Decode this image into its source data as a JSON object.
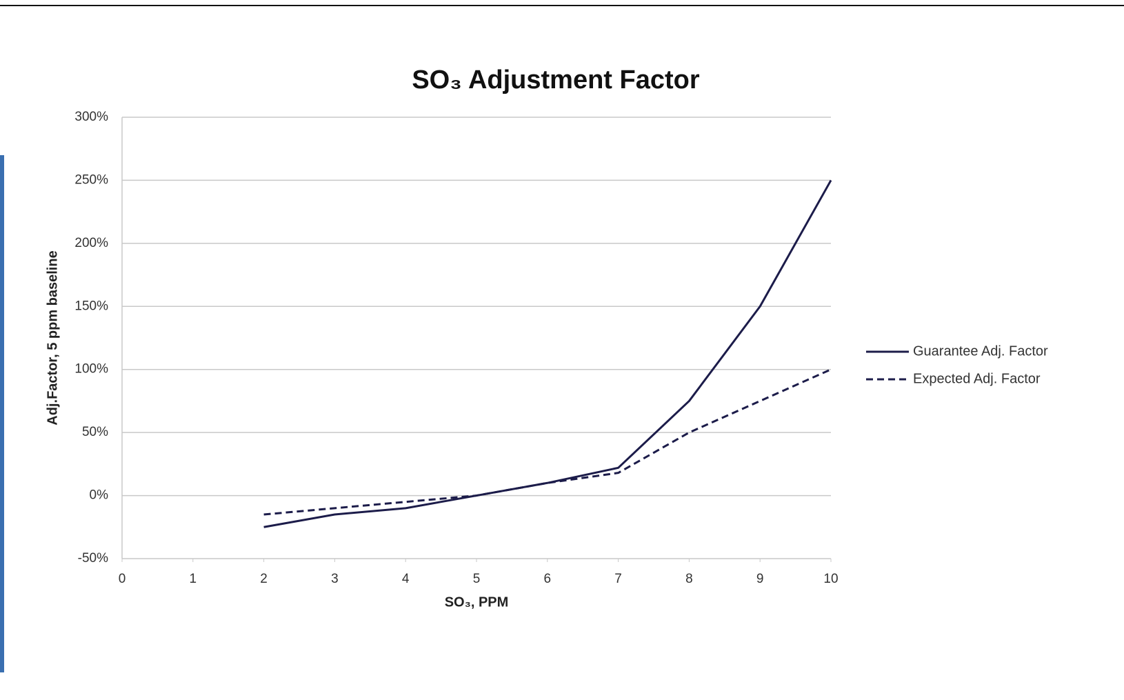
{
  "chart_data": {
    "type": "line",
    "title": "SO₃ Adjustment Factor",
    "x_label": "SO₃, PPM",
    "y_label": "Adj.Factor, 5 ppm baseline",
    "x": [
      2,
      3,
      4,
      5,
      6,
      7,
      8,
      9,
      10
    ],
    "series": [
      {
        "name": "Guarantee Adj. Factor",
        "color": "#1c1c4a",
        "line_style": "solid",
        "values": [
          -25,
          -15,
          -10,
          0,
          10,
          22,
          75,
          150,
          250
        ]
      },
      {
        "name": "Expected Adj. Factor",
        "color": "#1c1c4a",
        "line_style": "dashed",
        "values": [
          -15,
          -10,
          -5,
          0,
          10,
          18,
          50,
          75,
          100
        ]
      }
    ],
    "xlim": [
      0,
      10
    ],
    "xticks": [
      0,
      1,
      2,
      3,
      4,
      5,
      6,
      7,
      8,
      9,
      10
    ],
    "ylim": [
      -50,
      300
    ],
    "yticks": [
      {
        "value": -50,
        "label": "-50%"
      },
      {
        "value": 0,
        "label": "0%"
      },
      {
        "value": 50,
        "label": "50%"
      },
      {
        "value": 100,
        "label": "100%"
      },
      {
        "value": 150,
        "label": "150%"
      },
      {
        "value": 200,
        "label": "200%"
      },
      {
        "value": 250,
        "label": "250%"
      },
      {
        "value": 300,
        "label": "300%"
      }
    ],
    "grid": true,
    "legend": "right"
  }
}
